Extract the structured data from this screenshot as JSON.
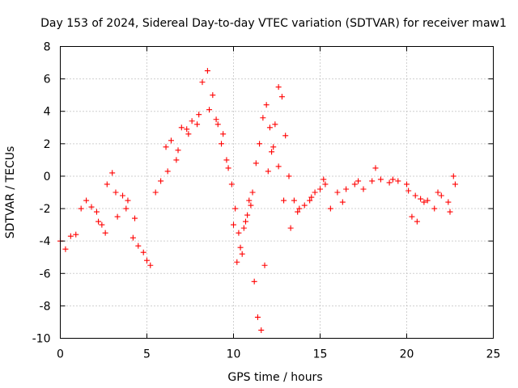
{
  "chart_data": {
    "type": "scatter",
    "title": "Day 153 of 2024, Sidereal Day-to-day VTEC variation (SDTVAR) for receiver maw1",
    "xlabel": "GPS time / hours",
    "ylabel": "SDTVAR / TECUs",
    "xlim": [
      0,
      25
    ],
    "ylim": [
      -10,
      8
    ],
    "xticks": [
      "0",
      "5",
      "10",
      "15",
      "20",
      "25"
    ],
    "yticks": [
      "8",
      "6",
      "4",
      "2",
      "0",
      "-2",
      "-4",
      "-6",
      "-8",
      "-10"
    ],
    "grid": true,
    "marker": "plus",
    "series_color": "#ff0000",
    "series": [
      {
        "name": "maw1",
        "x": [
          0.0,
          0.3,
          0.6,
          0.9,
          1.2,
          1.5,
          1.8,
          2.1,
          2.4,
          2.7,
          3.0,
          3.3,
          3.6,
          3.9,
          4.2,
          4.5,
          4.8,
          5.0,
          5.2,
          5.5,
          5.8,
          6.1,
          6.4,
          6.7,
          7.0,
          7.3,
          7.6,
          7.9,
          8.2,
          8.5,
          8.8,
          9.1,
          9.4,
          9.7,
          10.0,
          10.2,
          10.4,
          10.6,
          10.8,
          11.0,
          11.2,
          11.4,
          11.6,
          11.8,
          12.0,
          12.2,
          12.4,
          12.6,
          12.8,
          13.0,
          13.2,
          13.5,
          13.8,
          14.1,
          14.4,
          14.7,
          15.0,
          15.3,
          15.6,
          16.0,
          16.5,
          17.0,
          17.5,
          18.0,
          18.5,
          19.0,
          19.5,
          20.0,
          20.3,
          20.5,
          20.8,
          21.2,
          21.6,
          22.0,
          22.4,
          22.8,
          2.2,
          2.6,
          3.2,
          3.8,
          4.3,
          6.2,
          6.8,
          7.4,
          8.0,
          8.6,
          9.0,
          9.3,
          9.6,
          9.9,
          10.1,
          10.3,
          10.5,
          10.7,
          10.9,
          11.1,
          11.3,
          11.5,
          11.7,
          11.9,
          12.1,
          12.3,
          12.6,
          12.9,
          13.3,
          13.7,
          14.5,
          15.2,
          16.3,
          17.2,
          18.2,
          19.2,
          20.1,
          20.6,
          21.0,
          21.8,
          22.5,
          22.7
        ],
        "y": [
          -4.0,
          -4.5,
          -3.7,
          -3.6,
          -2.0,
          -1.5,
          -1.9,
          -2.2,
          -3.0,
          -0.5,
          0.2,
          -2.5,
          -1.2,
          -1.5,
          -3.8,
          -4.3,
          -4.7,
          -5.2,
          -5.5,
          -1.0,
          -0.3,
          1.8,
          2.2,
          1.0,
          3.0,
          2.9,
          3.4,
          3.2,
          5.8,
          6.5,
          5.0,
          3.2,
          2.6,
          0.5,
          -3.0,
          -5.3,
          -4.4,
          -3.2,
          -2.4,
          -1.8,
          -6.5,
          -8.7,
          -9.5,
          -5.5,
          0.3,
          1.5,
          3.2,
          5.5,
          4.9,
          2.5,
          0.0,
          -1.5,
          -2.0,
          -1.8,
          -1.5,
          -1.0,
          -0.8,
          -0.5,
          -2.0,
          -1.0,
          -0.8,
          -0.5,
          -0.8,
          -0.3,
          -0.2,
          -0.4,
          -0.3,
          -0.5,
          -2.5,
          -1.2,
          -1.4,
          -1.5,
          -2.0,
          -1.2,
          -1.6,
          -0.5,
          -2.8,
          -3.5,
          -1.0,
          -2.0,
          -2.6,
          0.3,
          1.6,
          2.6,
          3.8,
          4.1,
          3.5,
          2.0,
          1.0,
          -0.5,
          -2.0,
          -3.5,
          -4.8,
          -2.8,
          -1.5,
          -1.0,
          0.8,
          2.0,
          3.6,
          4.4,
          3.0,
          1.8,
          0.6,
          -1.5,
          -3.2,
          -2.2,
          -1.3,
          -0.2,
          -1.6,
          -0.3,
          0.5,
          -0.2,
          -0.9,
          -2.8,
          -1.6,
          -1.0,
          -2.2,
          0.0
        ]
      }
    ]
  }
}
